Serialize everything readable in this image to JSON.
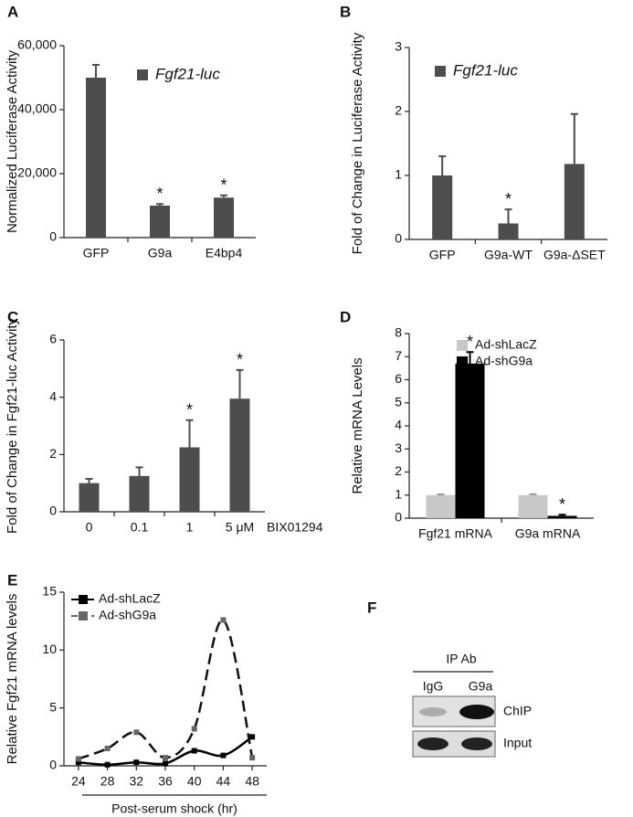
{
  "chart_data": [
    {
      "type": "bar",
      "panel": "A",
      "ylabel": "Normalized Luciferase Activity",
      "categories": [
        "GFP",
        "G9a",
        "E4bp4"
      ],
      "series": [
        {
          "name": "Fgf21-luc",
          "color": "#4d4d4d",
          "values": [
            50000,
            10000,
            12500
          ],
          "errors": [
            4000,
            500,
            700
          ],
          "significance": [
            null,
            "*",
            "*"
          ]
        }
      ],
      "ylim": [
        0,
        60000
      ],
      "yticks": [
        0,
        {
          "value": 20000,
          "label": "20,000"
        },
        {
          "value": 40000,
          "label": "40,000"
        },
        {
          "value": 60000,
          "label": "60,000"
        }
      ]
    },
    {
      "type": "bar",
      "panel": "B",
      "ylabel": "Fold of Change in Luciferase Activity",
      "categories": [
        "GFP",
        "G9a-WT",
        "G9a-ΔSET"
      ],
      "series": [
        {
          "name": "Fgf21-luc",
          "color": "#4d4d4d",
          "values": [
            1.0,
            0.25,
            1.18
          ],
          "errors": [
            0.3,
            0.22,
            0.78
          ],
          "significance": [
            null,
            "*",
            null
          ]
        }
      ],
      "ylim": [
        0,
        3
      ],
      "yticks": [
        0,
        1,
        2,
        3
      ]
    },
    {
      "type": "bar",
      "panel": "C",
      "ylabel": "Fold of Change in Fgf21-luc Activity",
      "xlabel": "BIX01294",
      "categories": [
        "0",
        "0.1",
        "1",
        "5 μM"
      ],
      "series": [
        {
          "name": null,
          "color": "#4d4d4d",
          "values": [
            1.0,
            1.25,
            2.25,
            3.95
          ],
          "errors": [
            0.15,
            0.3,
            0.95,
            1.0
          ],
          "significance": [
            null,
            null,
            "*",
            "*"
          ]
        }
      ],
      "ylim": [
        0,
        6
      ],
      "yticks": [
        0,
        2,
        4,
        6
      ]
    },
    {
      "type": "bar",
      "panel": "D",
      "ylabel": "Relative mRNA Levels",
      "categories": [
        "Fgf21 mRNA",
        "G9a mRNA"
      ],
      "series": [
        {
          "name": "Ad-shLacZ",
          "color": "#c8c8c8",
          "values": [
            1.0,
            1.0
          ],
          "errors": [
            0.03,
            0.04
          ],
          "significance": [
            null,
            null
          ]
        },
        {
          "name": "Ad-shG9a",
          "color": "#000000",
          "values": [
            6.7,
            0.1
          ],
          "errors": [
            0.5,
            0.05
          ],
          "significance": [
            "*",
            "*"
          ]
        }
      ],
      "ylim": [
        0,
        8
      ],
      "yticks": [
        0,
        1,
        2,
        3,
        4,
        5,
        6,
        7,
        8
      ]
    },
    {
      "type": "line",
      "panel": "E",
      "ylabel": "Relative Fgf21 mRNA levels",
      "xlabel": "Post-serum shock (hr)",
      "x": [
        24,
        28,
        32,
        36,
        40,
        44,
        48
      ],
      "series": [
        {
          "name": "Ad-shLacZ",
          "color": "#000000",
          "values": [
            0.3,
            0.1,
            0.3,
            0.2,
            1.3,
            0.9,
            2.5
          ]
        },
        {
          "name": "Ad-shG9a",
          "color": "#666666",
          "values": [
            0.6,
            1.5,
            2.9,
            0.7,
            3.2,
            12.6,
            0.7
          ]
        }
      ],
      "xlim": [
        22,
        50
      ],
      "xticks": [
        24,
        28,
        32,
        36,
        40,
        44,
        48
      ],
      "ylim": [
        0,
        15
      ],
      "yticks": [
        0,
        5,
        10,
        15
      ]
    }
  ],
  "panel_f": {
    "label": "F",
    "header": "IP Ab",
    "lanes": [
      "IgG",
      "G9a"
    ],
    "rows": [
      "ChIP",
      "Input"
    ]
  }
}
